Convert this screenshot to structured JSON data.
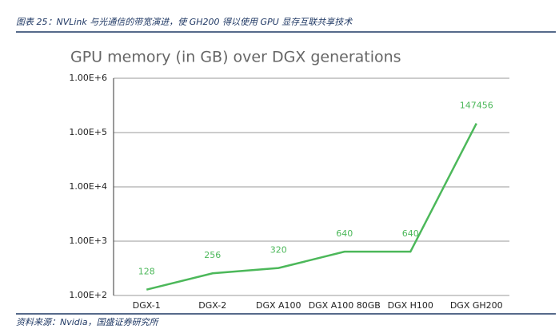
{
  "header": {
    "caption": "图表 25：NVLink 与光通信的带宽演进，使 GH200 得以使用 GPU 显存互联共享技术"
  },
  "source": "资料来源：Nvidia，国盛证券研究所",
  "chart_data": {
    "type": "line",
    "title": "GPU memory (in GB) over DGX generations",
    "categories": [
      "DGX-1",
      "DGX-2",
      "DGX A100",
      "DGX A100 80GB",
      "DGX H100",
      "DGX GH200"
    ],
    "series": [
      {
        "name": "GPU memory (in GB)",
        "color": "#4cb85a",
        "values": [
          128,
          256,
          320,
          640,
          640,
          147456
        ]
      }
    ],
    "log_scale": true,
    "grid": true,
    "ylim": [
      100,
      1000000
    ],
    "yticks": [
      {
        "value": 100,
        "label": "1.00E+2"
      },
      {
        "value": 1000,
        "label": "1.00E+3"
      },
      {
        "value": 10000,
        "label": "1.00E+4"
      },
      {
        "value": 100000,
        "label": "1.00E+5"
      },
      {
        "value": 1000000,
        "label": "1.00E+6"
      }
    ]
  }
}
